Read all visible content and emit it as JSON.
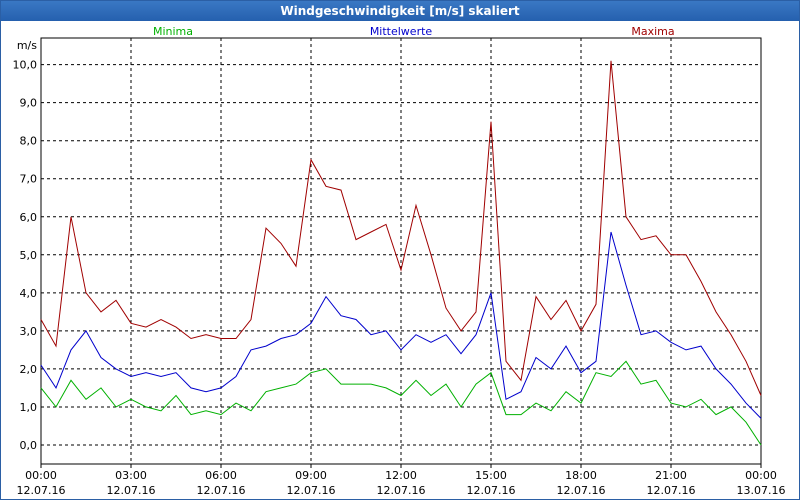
{
  "window": {
    "title": "Windgeschwindigkeit [m/s] skaliert"
  },
  "colors": {
    "minima": "#00b000",
    "mittelwerte": "#0000cc",
    "maxima": "#a00000",
    "grid": "#000000"
  },
  "chart_data": {
    "type": "line",
    "title": "Windgeschwindigkeit [m/s] skaliert",
    "ylabel": "m/s",
    "xlabel": "",
    "ylim": [
      -0.5,
      10.7
    ],
    "xlim": [
      0,
      24
    ],
    "grid": true,
    "y_ticks": [
      "0,0",
      "1,0",
      "2,0",
      "3,0",
      "4,0",
      "5,0",
      "6,0",
      "7,0",
      "8,0",
      "9,0",
      "10,0"
    ],
    "x_ticks": [
      {
        "hour": 0,
        "time": "00:00",
        "date": "12.07.16"
      },
      {
        "hour": 3,
        "time": "03:00",
        "date": "12.07.16"
      },
      {
        "hour": 6,
        "time": "06:00",
        "date": "12.07.16"
      },
      {
        "hour": 9,
        "time": "09:00",
        "date": "12.07.16"
      },
      {
        "hour": 12,
        "time": "12:00",
        "date": "12.07.16"
      },
      {
        "hour": 15,
        "time": "15:00",
        "date": "12.07.16"
      },
      {
        "hour": 18,
        "time": "18:00",
        "date": "12.07.16"
      },
      {
        "hour": 21,
        "time": "21:00",
        "date": "12.07.16"
      },
      {
        "hour": 24,
        "time": "00:00",
        "date": "13.07.16"
      }
    ],
    "x": [
      0,
      0.5,
      1,
      1.5,
      2,
      2.5,
      3,
      3.5,
      4,
      4.5,
      5,
      5.5,
      6,
      6.5,
      7,
      7.5,
      8,
      8.5,
      9,
      9.5,
      10,
      10.5,
      11,
      11.5,
      12,
      12.5,
      13,
      13.5,
      14,
      14.5,
      15,
      15.5,
      16,
      16.5,
      17,
      17.5,
      18,
      18.5,
      19,
      19.5,
      20,
      20.5,
      21,
      21.5,
      22,
      22.5,
      23,
      23.5,
      24
    ],
    "series": [
      {
        "name": "Minima",
        "color": "#00b000",
        "values": [
          1.5,
          1.0,
          1.7,
          1.2,
          1.5,
          1.0,
          1.2,
          1.0,
          0.9,
          1.3,
          0.8,
          0.9,
          0.8,
          1.1,
          0.9,
          1.4,
          1.5,
          1.6,
          1.9,
          2.0,
          1.6,
          1.6,
          1.6,
          1.5,
          1.3,
          1.7,
          1.3,
          1.6,
          1.0,
          1.6,
          1.9,
          0.8,
          0.8,
          1.1,
          0.9,
          1.4,
          1.1,
          1.9,
          1.8,
          2.2,
          1.6,
          1.7,
          1.1,
          1.0,
          1.2,
          0.8,
          1.0,
          0.6,
          0.0
        ]
      },
      {
        "name": "Mittelwerte",
        "color": "#0000cc",
        "values": [
          2.1,
          1.5,
          2.5,
          3.0,
          2.3,
          2.0,
          1.8,
          1.9,
          1.8,
          1.9,
          1.5,
          1.4,
          1.5,
          1.8,
          2.5,
          2.6,
          2.8,
          2.9,
          3.2,
          3.9,
          3.4,
          3.3,
          2.9,
          3.0,
          2.5,
          2.9,
          2.7,
          2.9,
          2.4,
          2.9,
          4.0,
          1.2,
          1.4,
          2.3,
          2.0,
          2.6,
          1.9,
          2.2,
          5.6,
          4.2,
          2.9,
          3.0,
          2.7,
          2.5,
          2.6,
          2.0,
          1.6,
          1.1,
          0.7
        ]
      },
      {
        "name": "Maxima",
        "color": "#a00000",
        "values": [
          3.3,
          2.6,
          6.0,
          4.0,
          3.5,
          3.8,
          3.2,
          3.1,
          3.3,
          3.1,
          2.8,
          2.9,
          2.8,
          2.8,
          3.3,
          5.7,
          5.3,
          4.7,
          7.5,
          6.8,
          6.7,
          5.4,
          5.6,
          5.8,
          4.6,
          6.3,
          5.0,
          3.6,
          3.0,
          3.5,
          8.5,
          2.2,
          1.7,
          3.9,
          3.3,
          3.8,
          3.0,
          3.7,
          10.1,
          6.0,
          5.4,
          5.5,
          5.0,
          5.0,
          4.3,
          3.5,
          2.9,
          2.2,
          1.3
        ]
      }
    ]
  }
}
